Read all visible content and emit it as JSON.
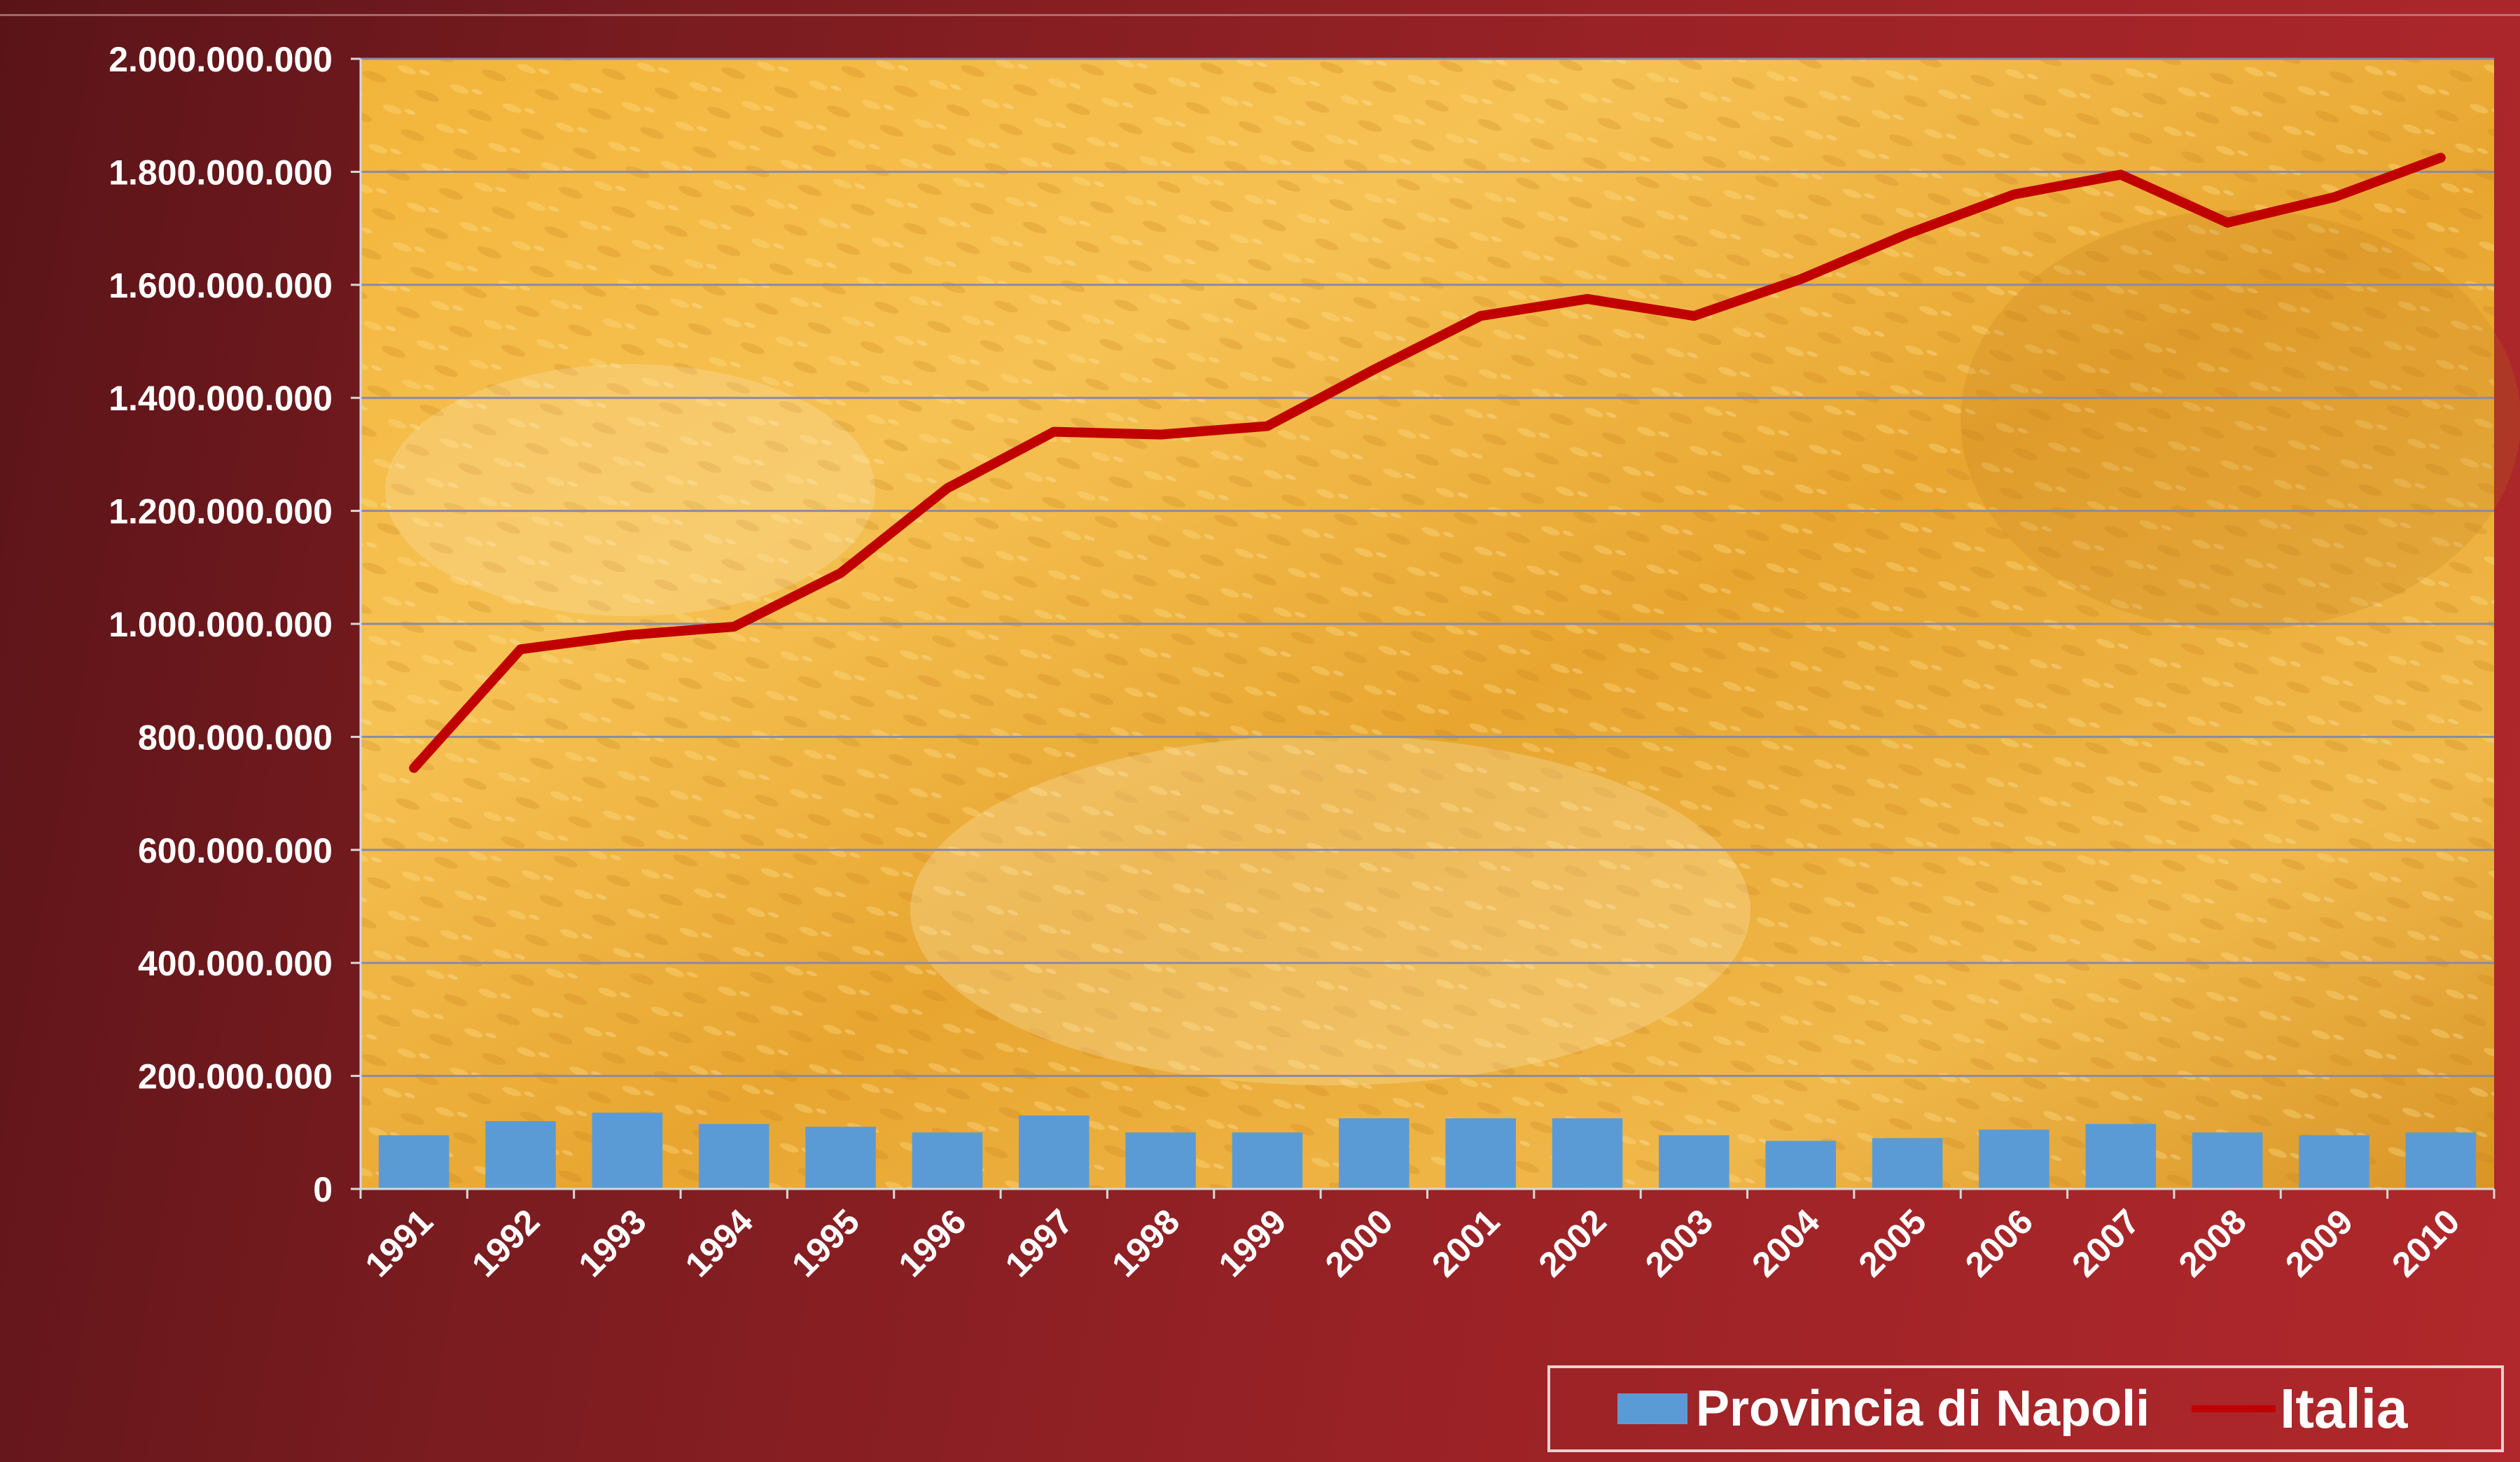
{
  "colors": {
    "background": "#8a1e22",
    "bar": "#5b9bd5",
    "line": "#c00000",
    "grid": "#8a8aa8",
    "text": "#ffffff"
  },
  "legend": {
    "bar_label": "Provincia di Napoli",
    "line_label": "Italia",
    "placement": "bottom-right"
  },
  "chart_data": {
    "type": "bar",
    "title": "",
    "xlabel": "",
    "ylabel": "",
    "ylim": [
      0,
      2000000000
    ],
    "grid": true,
    "categories": [
      "1991",
      "1992",
      "1993",
      "1994",
      "1995",
      "1996",
      "1997",
      "1998",
      "1999",
      "2000",
      "2001",
      "2002",
      "2003",
      "2004",
      "2005",
      "2006",
      "2007",
      "2008",
      "2009",
      "2010"
    ],
    "yticks": [
      "0",
      "200.000.000",
      "400.000.000",
      "600.000.000",
      "800.000.000",
      "1.000.000.000",
      "1.200.000.000",
      "1.400.000.000",
      "1.600.000.000",
      "1.800.000.000",
      "2.000.000.000"
    ],
    "series": [
      {
        "name": "Provincia di Napoli",
        "type": "bar",
        "values": [
          95000000,
          120000000,
          135000000,
          115000000,
          110000000,
          100000000,
          130000000,
          100000000,
          100000000,
          125000000,
          125000000,
          125000000,
          95000000,
          85000000,
          90000000,
          105000000,
          115000000,
          100000000,
          95000000,
          100000000
        ]
      },
      {
        "name": "Italia",
        "type": "line",
        "values": [
          745000000,
          955000000,
          980000000,
          995000000,
          1090000000,
          1240000000,
          1340000000,
          1335000000,
          1350000000,
          1450000000,
          1545000000,
          1575000000,
          1545000000,
          1610000000,
          1690000000,
          1760000000,
          1795000000,
          1710000000,
          1755000000,
          1825000000
        ]
      }
    ]
  }
}
